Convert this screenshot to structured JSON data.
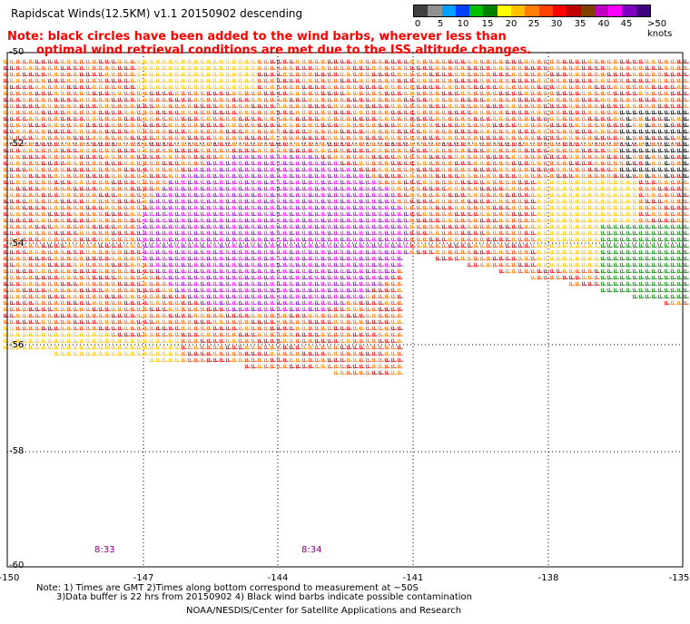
{
  "title": "Rapidscat Winds(12.5KM) v1.1 20150902 descending",
  "note_line1": "Note: black circles have been added to the wind barbs, wherever less than",
  "note_line2": "optimal wind retrieval conditions are met due to the ISS altitude changes.",
  "legend": {
    "labels": [
      "0",
      "5",
      "10",
      "15",
      "20",
      "25",
      "30",
      "35",
      "40",
      "45",
      ">50 knots"
    ],
    "colors": [
      "#404040",
      "#909090",
      "#00a0ff",
      "#0040ff",
      "#00c000",
      "#008000",
      "#ffff00",
      "#ffc000",
      "#ff8000",
      "#ff4000",
      "#ff0000",
      "#c00000",
      "#804000",
      "#c000c0",
      "#ff00ff",
      "#8000c0",
      "#400080"
    ]
  },
  "lat_labels": [
    "-50",
    "-52",
    "-54",
    "-56",
    "-58",
    "-60"
  ],
  "lon_labels": [
    "-150",
    "-147",
    "-144",
    "-141",
    "-138",
    "-135"
  ],
  "time_labels": [
    "8:33",
    "8:34"
  ],
  "footnote_line1": "Note: 1) Times are GMT 2)Times along bottom correspond to measurement at ~50S",
  "footnote_line2": "3)Data buffer is 22 hrs from 20150902 4) Black wind barbs indicate possible contamination",
  "credit": "NOAA/NESDIS/Center for Satellite Applications and Research"
}
